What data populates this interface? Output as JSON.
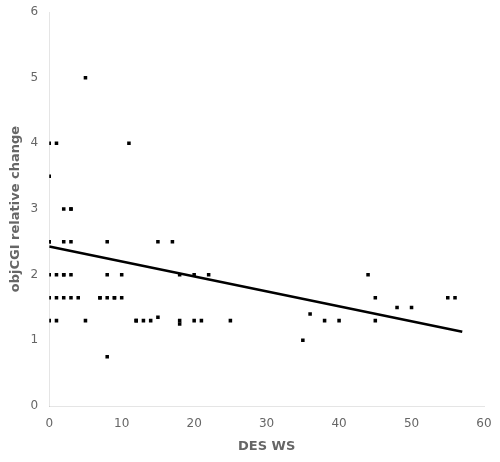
{
  "chart_data": {
    "type": "scatter",
    "xlabel": "DES WS",
    "ylabel": "objCGI relative change",
    "xlim": [
      0,
      60
    ],
    "ylim": [
      0,
      6
    ],
    "xticks": [
      0,
      10,
      20,
      30,
      40,
      50,
      60
    ],
    "yticks": [
      0,
      1,
      2,
      3,
      4,
      5,
      6
    ],
    "grid": false,
    "series": [
      {
        "type": "scatter",
        "color": "#000000",
        "marker": "square",
        "x": [
          0,
          0,
          0,
          0,
          0,
          0,
          1,
          1,
          1,
          2,
          2,
          2,
          2,
          3,
          3,
          3,
          3,
          4,
          5,
          5,
          7,
          7,
          8,
          8,
          8,
          8,
          9,
          9,
          10,
          10,
          12,
          12,
          13,
          14,
          15,
          17,
          18,
          18,
          20,
          20,
          21,
          22,
          25,
          35,
          36,
          38,
          40,
          44,
          45,
          48,
          50,
          55,
          56,
          0,
          1,
          2,
          3,
          11,
          15,
          18,
          45
        ],
        "values": [
          2.0,
          1.65,
          1.3,
          2.5,
          2.5,
          4.0,
          4.0,
          1.65,
          1.3,
          3.0,
          2.5,
          2.0,
          1.65,
          3.0,
          3.0,
          2.0,
          1.65,
          1.65,
          5.0,
          1.3,
          1.65,
          1.65,
          2.5,
          2.0,
          1.65,
          0.75,
          1.65,
          1.65,
          2.0,
          1.65,
          1.3,
          1.3,
          1.3,
          1.3,
          2.5,
          2.5,
          2.0,
          1.3,
          2.0,
          1.3,
          1.3,
          2.0,
          1.3,
          1.0,
          1.4,
          1.3,
          1.3,
          2.0,
          1.65,
          1.5,
          1.5,
          1.65,
          1.65,
          3.5,
          2.0,
          2.0,
          2.5,
          4.0,
          1.35,
          1.25,
          1.3
        ]
      },
      {
        "type": "line",
        "color": "#000000",
        "line_style": "solid",
        "x": [
          0,
          57
        ],
        "values": [
          2.43,
          1.13
        ]
      }
    ]
  }
}
